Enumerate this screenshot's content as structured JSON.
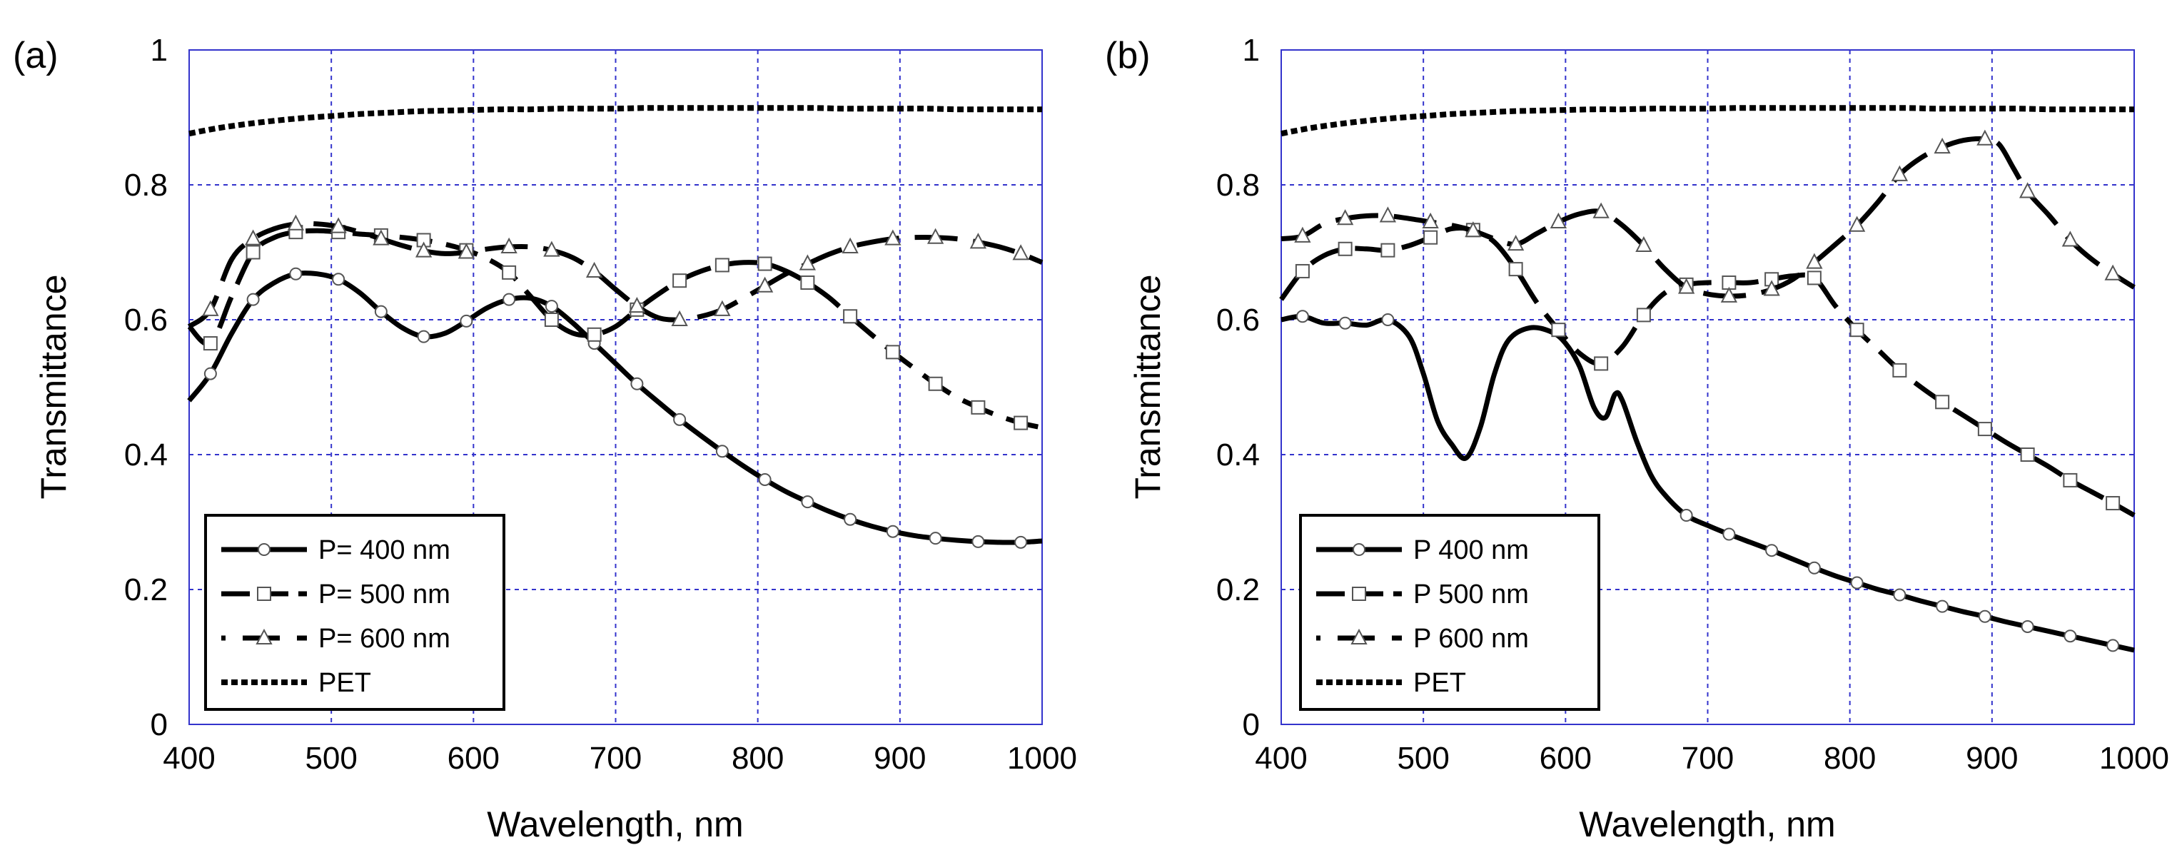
{
  "figure": {
    "style": {
      "grid_color": "#3333cc",
      "line_color": "#000000",
      "background": "#ffffff"
    }
  },
  "chart_data": [
    {
      "type": "line",
      "panel_label": "(a)",
      "xlabel": "Wavelength, nm",
      "ylabel": "Transmittance",
      "xlim": [
        400,
        1000
      ],
      "ylim": [
        0,
        1
      ],
      "xticks": [
        400,
        500,
        600,
        700,
        800,
        900,
        1000
      ],
      "xtick_labels": [
        "400",
        "500",
        "600",
        "700",
        "800",
        "900",
        "1000"
      ],
      "yticks": [
        0,
        0.2,
        0.4,
        0.6,
        0.8,
        1
      ],
      "ytick_labels": [
        "0",
        "0.2",
        "0.4",
        "0.6",
        "0.8",
        "1"
      ],
      "grid": true,
      "legend_position": "bottom-left",
      "series": [
        {
          "name": "P= 400 nm",
          "marker": "circle",
          "dash": "solid",
          "x": [
            400,
            415,
            430,
            445,
            460,
            475,
            490,
            505,
            520,
            535,
            550,
            565,
            580,
            595,
            610,
            625,
            640,
            655,
            670,
            685,
            700,
            715,
            730,
            745,
            760,
            775,
            790,
            805,
            820,
            835,
            850,
            865,
            880,
            895,
            910,
            925,
            940,
            955,
            970,
            985,
            1000
          ],
          "y": [
            0.48,
            0.52,
            0.58,
            0.63,
            0.655,
            0.668,
            0.668,
            0.66,
            0.64,
            0.612,
            0.588,
            0.575,
            0.58,
            0.598,
            0.618,
            0.63,
            0.632,
            0.62,
            0.595,
            0.565,
            0.535,
            0.505,
            0.478,
            0.452,
            0.428,
            0.405,
            0.383,
            0.363,
            0.345,
            0.33,
            0.316,
            0.304,
            0.294,
            0.286,
            0.28,
            0.276,
            0.273,
            0.271,
            0.27,
            0.27,
            0.272
          ]
        },
        {
          "name": "P= 500 nm",
          "marker": "square",
          "dash": "dash",
          "x": [
            400,
            415,
            430,
            445,
            460,
            475,
            490,
            505,
            520,
            535,
            550,
            565,
            580,
            595,
            610,
            625,
            640,
            655,
            670,
            685,
            700,
            715,
            730,
            745,
            760,
            775,
            790,
            805,
            820,
            835,
            850,
            865,
            880,
            895,
            910,
            925,
            940,
            955,
            970,
            985,
            1000
          ],
          "y": [
            0.59,
            0.565,
            0.635,
            0.7,
            0.722,
            0.73,
            0.732,
            0.73,
            0.727,
            0.725,
            0.722,
            0.718,
            0.712,
            0.703,
            0.69,
            0.67,
            0.635,
            0.6,
            0.58,
            0.578,
            0.59,
            0.615,
            0.638,
            0.658,
            0.672,
            0.681,
            0.685,
            0.683,
            0.672,
            0.655,
            0.633,
            0.605,
            0.578,
            0.552,
            0.528,
            0.505,
            0.485,
            0.47,
            0.457,
            0.447,
            0.44
          ]
        },
        {
          "name": "P= 600 nm",
          "marker": "triangle",
          "dash": "longdash",
          "x": [
            400,
            415,
            430,
            445,
            460,
            475,
            490,
            505,
            520,
            535,
            550,
            565,
            580,
            595,
            610,
            625,
            640,
            655,
            670,
            685,
            700,
            715,
            730,
            745,
            760,
            775,
            790,
            805,
            820,
            835,
            850,
            865,
            880,
            895,
            910,
            925,
            940,
            955,
            970,
            985,
            1000
          ],
          "y": [
            0.59,
            0.615,
            0.69,
            0.72,
            0.735,
            0.742,
            0.742,
            0.738,
            0.73,
            0.72,
            0.71,
            0.702,
            0.698,
            0.7,
            0.705,
            0.708,
            0.708,
            0.703,
            0.692,
            0.672,
            0.645,
            0.62,
            0.603,
            0.6,
            0.605,
            0.615,
            0.632,
            0.65,
            0.668,
            0.683,
            0.697,
            0.708,
            0.715,
            0.72,
            0.722,
            0.722,
            0.72,
            0.715,
            0.708,
            0.698,
            0.685
          ]
        },
        {
          "name": "PET",
          "marker": "none",
          "dash": "dot",
          "x": [
            400,
            420,
            440,
            460,
            480,
            500,
            520,
            540,
            560,
            580,
            600,
            620,
            640,
            660,
            680,
            700,
            720,
            740,
            760,
            780,
            800,
            820,
            840,
            860,
            880,
            900,
            920,
            940,
            960,
            980,
            1000
          ],
          "y": [
            0.876,
            0.884,
            0.89,
            0.895,
            0.899,
            0.902,
            0.905,
            0.907,
            0.909,
            0.91,
            0.911,
            0.912,
            0.912,
            0.913,
            0.913,
            0.913,
            0.914,
            0.914,
            0.914,
            0.914,
            0.914,
            0.914,
            0.914,
            0.913,
            0.913,
            0.913,
            0.913,
            0.912,
            0.912,
            0.912,
            0.912
          ]
        }
      ]
    },
    {
      "type": "line",
      "panel_label": "(b)",
      "xlabel": "Wavelength, nm",
      "ylabel": "Transmittance",
      "xlim": [
        400,
        1000
      ],
      "ylim": [
        0,
        1
      ],
      "xticks": [
        400,
        500,
        600,
        700,
        800,
        900,
        1000
      ],
      "xtick_labels": [
        "400",
        "500",
        "600",
        "700",
        "800",
        "900",
        "1000"
      ],
      "yticks": [
        0,
        0.2,
        0.4,
        0.6,
        0.8,
        1
      ],
      "ytick_labels": [
        "0",
        "0.2",
        "0.4",
        "0.6",
        "0.8",
        "1"
      ],
      "grid": true,
      "legend_position": "bottom-left",
      "series": [
        {
          "name": "P 400 nm",
          "marker": "circle",
          "dash": "solid",
          "x": [
            400,
            415,
            430,
            445,
            460,
            475,
            490,
            500,
            510,
            520,
            530,
            540,
            550,
            560,
            575,
            590,
            600,
            610,
            620,
            628,
            635,
            640,
            650,
            660,
            670,
            685,
            700,
            715,
            730,
            745,
            760,
            775,
            790,
            805,
            820,
            835,
            850,
            865,
            880,
            895,
            910,
            925,
            940,
            955,
            970,
            985,
            1000
          ],
          "y": [
            0.6,
            0.605,
            0.595,
            0.595,
            0.592,
            0.6,
            0.575,
            0.52,
            0.45,
            0.415,
            0.395,
            0.44,
            0.52,
            0.57,
            0.588,
            0.582,
            0.565,
            0.53,
            0.47,
            0.455,
            0.49,
            0.48,
            0.42,
            0.37,
            0.34,
            0.31,
            0.295,
            0.282,
            0.27,
            0.258,
            0.245,
            0.232,
            0.22,
            0.21,
            0.2,
            0.192,
            0.183,
            0.175,
            0.167,
            0.16,
            0.152,
            0.145,
            0.138,
            0.131,
            0.124,
            0.117,
            0.11
          ]
        },
        {
          "name": "P 500 nm",
          "marker": "square",
          "dash": "dash",
          "x": [
            400,
            415,
            430,
            445,
            460,
            475,
            490,
            505,
            520,
            535,
            550,
            565,
            580,
            595,
            610,
            625,
            640,
            655,
            670,
            685,
            700,
            715,
            730,
            745,
            760,
            775,
            790,
            805,
            820,
            835,
            850,
            865,
            880,
            895,
            910,
            925,
            940,
            955,
            970,
            985,
            1000
          ],
          "y": [
            0.63,
            0.672,
            0.695,
            0.705,
            0.705,
            0.703,
            0.71,
            0.722,
            0.735,
            0.733,
            0.715,
            0.675,
            0.625,
            0.585,
            0.55,
            0.535,
            0.56,
            0.607,
            0.64,
            0.652,
            0.655,
            0.655,
            0.655,
            0.66,
            0.665,
            0.662,
            0.62,
            0.585,
            0.555,
            0.525,
            0.5,
            0.478,
            0.458,
            0.438,
            0.418,
            0.4,
            0.382,
            0.362,
            0.345,
            0.328,
            0.31
          ]
        },
        {
          "name": "P 600 nm",
          "marker": "triangle",
          "dash": "longdash",
          "x": [
            400,
            415,
            430,
            445,
            460,
            475,
            490,
            505,
            520,
            535,
            550,
            565,
            580,
            595,
            610,
            625,
            640,
            655,
            670,
            685,
            700,
            715,
            730,
            745,
            760,
            775,
            790,
            805,
            820,
            835,
            850,
            865,
            880,
            895,
            905,
            915,
            925,
            940,
            955,
            970,
            985,
            1000
          ],
          "y": [
            0.72,
            0.724,
            0.742,
            0.75,
            0.754,
            0.754,
            0.75,
            0.745,
            0.74,
            0.732,
            0.72,
            0.712,
            0.728,
            0.745,
            0.757,
            0.76,
            0.74,
            0.71,
            0.675,
            0.648,
            0.638,
            0.635,
            0.637,
            0.645,
            0.66,
            0.685,
            0.712,
            0.74,
            0.775,
            0.815,
            0.84,
            0.856,
            0.866,
            0.868,
            0.86,
            0.825,
            0.79,
            0.755,
            0.718,
            0.69,
            0.668,
            0.648
          ]
        },
        {
          "name": "PET",
          "marker": "none",
          "dash": "dot",
          "x": [
            400,
            420,
            440,
            460,
            480,
            500,
            520,
            540,
            560,
            580,
            600,
            620,
            640,
            660,
            680,
            700,
            720,
            740,
            760,
            780,
            800,
            820,
            840,
            860,
            880,
            900,
            920,
            940,
            960,
            980,
            1000
          ],
          "y": [
            0.876,
            0.884,
            0.89,
            0.895,
            0.899,
            0.902,
            0.905,
            0.907,
            0.909,
            0.91,
            0.911,
            0.912,
            0.912,
            0.913,
            0.913,
            0.913,
            0.914,
            0.914,
            0.914,
            0.914,
            0.914,
            0.914,
            0.914,
            0.913,
            0.913,
            0.913,
            0.913,
            0.912,
            0.912,
            0.912,
            0.912
          ]
        }
      ]
    }
  ]
}
